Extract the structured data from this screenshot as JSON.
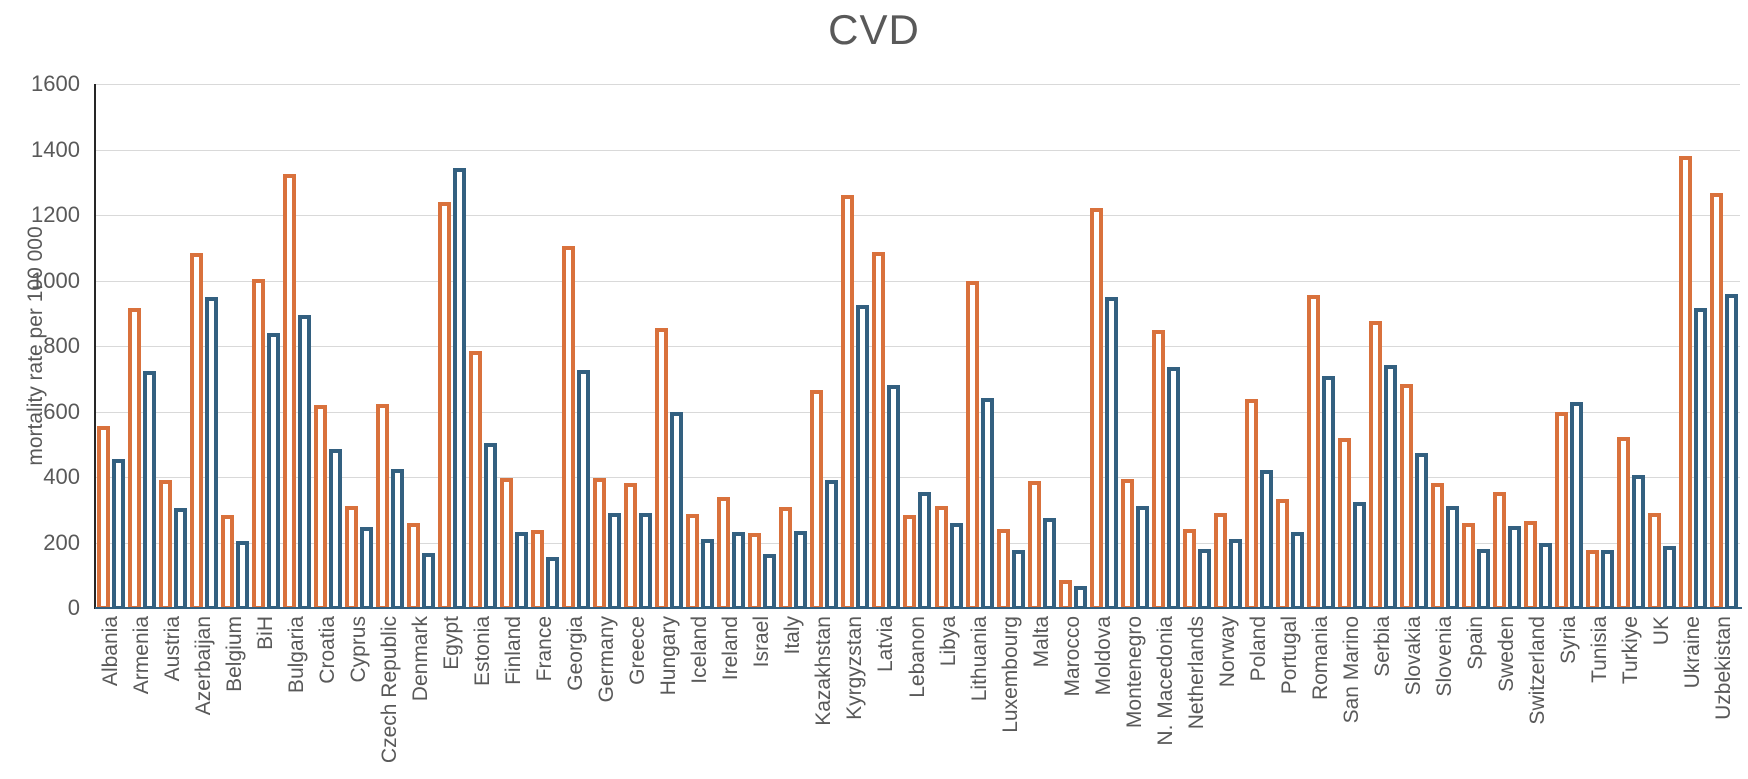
{
  "title": "CVD",
  "y_axis_label": "mortality rate per 100 000",
  "colors": {
    "series_orange": "#d9713c",
    "series_blue": "#336080",
    "gridline": "#d9d9d9",
    "text": "#595959",
    "y_axis_line": "#262626",
    "x_axis_line": "#336080"
  },
  "chart_data": {
    "type": "bar",
    "title": "CVD",
    "xlabel": "",
    "ylabel": "mortality rate per 100 000",
    "ylim": [
      0,
      1600
    ],
    "ytick_step": 200,
    "grid": true,
    "legend_position": "none",
    "categories": [
      "Albania",
      "Armenia",
      "Austria",
      "Azerbaijan",
      "Belgium",
      "BiH",
      "Bulgaria",
      "Croatia",
      "Cyprus",
      "Czech Republic",
      "Denmark",
      "Egypt",
      "Estonia",
      "Finland",
      "France",
      "Georgia",
      "Germany",
      "Greece",
      "Hungary",
      "Iceland",
      "Ireland",
      "Israel",
      "Italy",
      "Kazakhstan",
      "Kyrgyzstan",
      "Latvia",
      "Lebanon",
      "Libya",
      "Lithuania",
      "Luxembourg",
      "Malta",
      "Marocco",
      "Moldova",
      "Montenegro",
      "N. Macedonia",
      "Netherlands",
      "Norway",
      "Poland",
      "Portugal",
      "Romania",
      "San Marino",
      "Serbia",
      "Slovakia",
      "Slovenia",
      "Spain",
      "Sweden",
      "Switzerland",
      "Syria",
      "Tunisia",
      "Turkiye",
      "UK",
      "Ukraine",
      "Uzbekistan"
    ],
    "series": [
      {
        "name": "series-orange",
        "color": "#d9713c",
        "values": [
          555,
          915,
          390,
          1085,
          285,
          1005,
          1325,
          620,
          313,
          622,
          260,
          1240,
          786,
          396,
          238,
          1104,
          396,
          382,
          856,
          287,
          339,
          229,
          309,
          667,
          1260,
          1088,
          284,
          310,
          1000,
          241,
          387,
          85,
          1220,
          394,
          850,
          241,
          290,
          639,
          332,
          957,
          520,
          875,
          683,
          383,
          259,
          353,
          267,
          600,
          176,
          521,
          289,
          1380,
          1268
        ]
      },
      {
        "name": "series-blue",
        "color": "#336080",
        "values": [
          455,
          725,
          305,
          950,
          205,
          840,
          895,
          487,
          247,
          425,
          168,
          1345,
          504,
          233,
          156,
          728,
          290,
          290,
          600,
          211,
          231,
          165,
          234,
          392,
          925,
          681,
          353,
          261,
          640,
          176,
          274,
          66,
          950,
          310,
          737,
          179,
          211,
          422,
          233,
          708,
          325,
          742,
          474,
          313,
          180,
          251,
          200,
          630,
          178,
          405,
          188,
          916,
          958
        ]
      }
    ]
  }
}
